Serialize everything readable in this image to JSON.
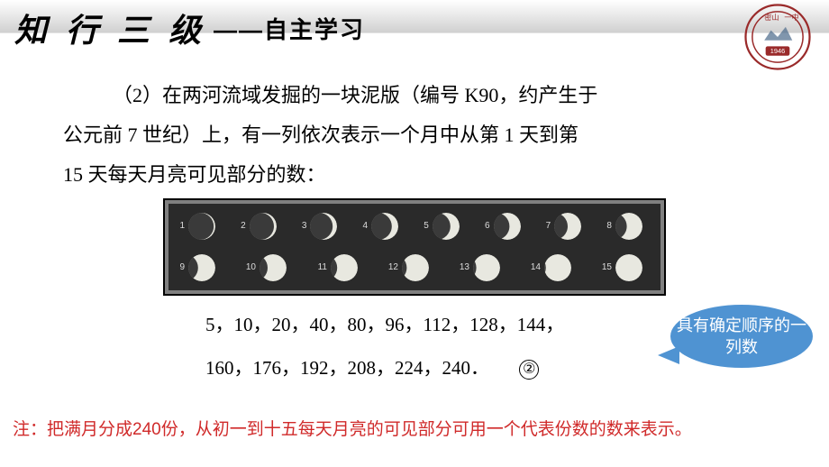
{
  "header": {
    "title": "知 行 三 级",
    "subtitle": "——自主学习"
  },
  "seal": {
    "outer_color": "#9a2a2a",
    "year": "1946",
    "top_text": "密山",
    "right_text": "一中"
  },
  "body": {
    "line1": "（2）在两河流域发掘的一块泥版（编号 K90，约产生于",
    "line2": "公元前 7 世纪）上，有一列依次表示一个月中从第 1 天到第",
    "line3": "15 天每天月亮可见部分的数："
  },
  "moon": {
    "row1": [
      {
        "n": "1",
        "lit": 0.06
      },
      {
        "n": "2",
        "lit": 0.1
      },
      {
        "n": "3",
        "lit": 0.16
      },
      {
        "n": "4",
        "lit": 0.24
      },
      {
        "n": "5",
        "lit": 0.34
      },
      {
        "n": "6",
        "lit": 0.42
      },
      {
        "n": "7",
        "lit": 0.5
      },
      {
        "n": "8",
        "lit": 0.58
      }
    ],
    "row2": [
      {
        "n": "9",
        "lit": 0.64
      },
      {
        "n": "10",
        "lit": 0.7
      },
      {
        "n": "11",
        "lit": 0.76
      },
      {
        "n": "12",
        "lit": 0.82
      },
      {
        "n": "13",
        "lit": 0.88
      },
      {
        "n": "14",
        "lit": 0.94
      },
      {
        "n": "15",
        "lit": 1.0
      }
    ],
    "bg": "#2a2a2a",
    "dark": "#3a3a3a",
    "light": "#e8e8e0"
  },
  "sequence": {
    "line1": "5，10，20，40，80，96，112，128，144，",
    "line2": "160，176，192，208，224，240．",
    "marker": "②"
  },
  "callout": {
    "text": "具有确定顺序的一列数",
    "bg": "#4f93d2",
    "fg": "#ffffff"
  },
  "note": {
    "text": "注：把满月分成240份，从初一到十五每天月亮的可见部分可用一个代表份数的数来表示。",
    "color": "#d02a2a"
  }
}
